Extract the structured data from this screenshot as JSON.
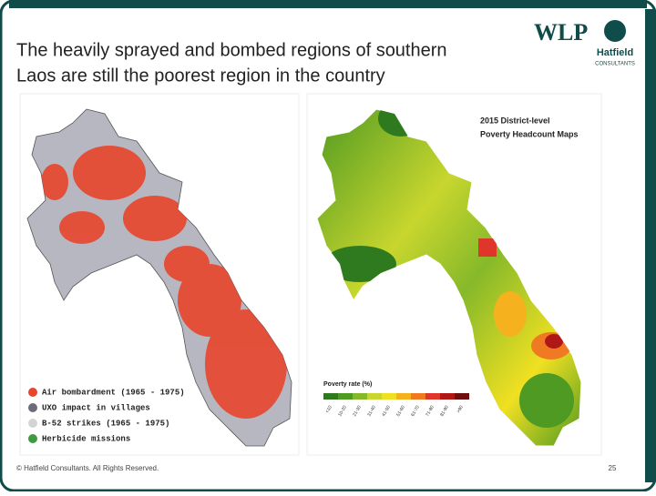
{
  "slide": {
    "title_lines": [
      "The heavily sprayed and bombed regions of southern",
      "Laos are still the poorest region in the country"
    ],
    "logos": {
      "wlp": "WLP",
      "hatfield": "Hatfield",
      "hatfield_sub": "CONSULTANTS"
    },
    "left_map": {
      "legend": [
        {
          "label": "Air bombardment (1965 - 1975)",
          "color": "#e8452c"
        },
        {
          "label": "UXO impact in villages",
          "color": "#6b6b7a"
        },
        {
          "label": "B-52 strikes (1965 - 1975)",
          "color": "#d4d4d4"
        },
        {
          "label": "Herbicide missions",
          "color": "#3f9a3f"
        }
      ]
    },
    "right_map": {
      "title_lines": [
        "2015 District-level",
        "Poverty Headcount Maps"
      ],
      "scale_title": "Poverty rate (%)",
      "scale": [
        {
          "label": "<10",
          "color": "#2f7a1e"
        },
        {
          "label": "10-20",
          "color": "#4f9a22"
        },
        {
          "label": "21-30",
          "color": "#86b92a"
        },
        {
          "label": "31-40",
          "color": "#c8d62e"
        },
        {
          "label": "41-50",
          "color": "#f0e022"
        },
        {
          "label": "51-60",
          "color": "#f5b21e"
        },
        {
          "label": "61-70",
          "color": "#ef7a22"
        },
        {
          "label": "71-80",
          "color": "#e0352a"
        },
        {
          "label": "81-90",
          "color": "#b01818"
        },
        {
          "label": ">90",
          "color": "#6e0e0e"
        }
      ]
    },
    "footer": "© Hatfield Consultants. All Rights Reserved.",
    "page_number": "25"
  }
}
